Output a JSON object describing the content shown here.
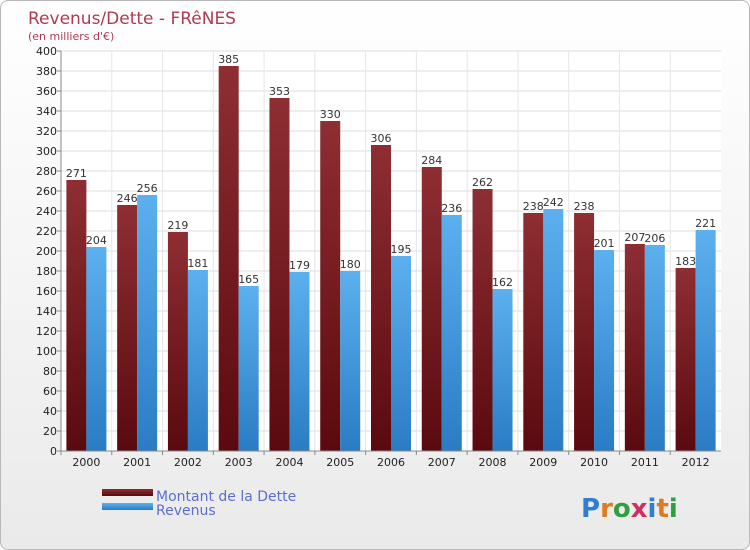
{
  "chart_data": {
    "type": "bar",
    "title": "Revenus/Dette - FRêNES",
    "subtitle": "(en milliers d'€)",
    "categories": [
      "2000",
      "2001",
      "2002",
      "2003",
      "2004",
      "2005",
      "2006",
      "2007",
      "2008",
      "2009",
      "2010",
      "2011",
      "2012"
    ],
    "series": [
      {
        "name": "Montant de la Dette",
        "values": [
          271,
          246,
          219,
          385,
          353,
          330,
          306,
          284,
          262,
          238,
          238,
          207,
          183
        ],
        "color": "#7a1f23"
      },
      {
        "name": "Revenus",
        "values": [
          204,
          256,
          181,
          165,
          179,
          180,
          195,
          236,
          162,
          242,
          201,
          206,
          221
        ],
        "color": "#4a9fe0"
      }
    ],
    "ylim": [
      0,
      400
    ],
    "ytick_step": 20,
    "grid": true,
    "legend": "bottom-left"
  },
  "logo": {
    "letters": [
      "P",
      "r",
      "o",
      "x",
      "i",
      "t",
      "i"
    ],
    "colors": [
      "#2f7fd0",
      "#e07a20",
      "#2f9f3f",
      "#d03060",
      "#2f7fd0",
      "#e07a20",
      "#2f9f3f"
    ]
  }
}
